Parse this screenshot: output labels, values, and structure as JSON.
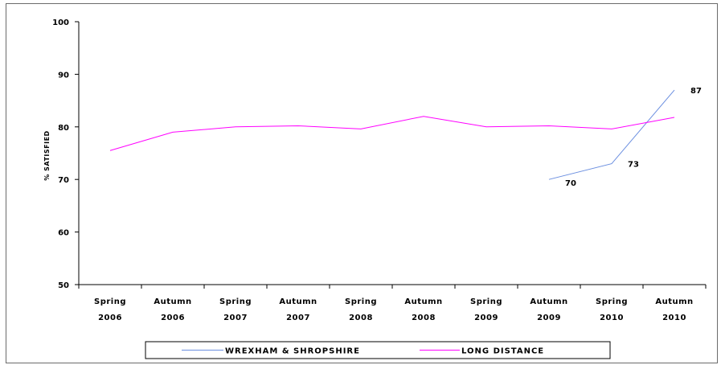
{
  "chart_data": {
    "type": "line",
    "title": "",
    "xlabel": "",
    "ylabel": "% SATISFIED",
    "ylim": [
      50,
      100
    ],
    "yticks": [
      50,
      60,
      70,
      80,
      90,
      100
    ],
    "grid": false,
    "legend_position": "bottom",
    "categories": [
      [
        "Spring",
        "2006"
      ],
      [
        "Autumn",
        "2006"
      ],
      [
        "Spring",
        "2007"
      ],
      [
        "Autumn",
        "2007"
      ],
      [
        "Spring",
        "2008"
      ],
      [
        "Autumn",
        "2008"
      ],
      [
        "Spring",
        "2009"
      ],
      [
        "Autumn",
        "2009"
      ],
      [
        "Spring",
        "2010"
      ],
      [
        "Autumn",
        "2010"
      ]
    ],
    "series": [
      {
        "name": "WREXHAM & SHROPSHIRE",
        "color": "#6b8fe0",
        "values": [
          null,
          null,
          null,
          null,
          null,
          null,
          null,
          70,
          73,
          87
        ],
        "labels": [
          null,
          null,
          null,
          null,
          null,
          null,
          null,
          "70",
          "73",
          "87"
        ]
      },
      {
        "name": "LONG DISTANCE",
        "color": "#ff00ff",
        "values": [
          75.5,
          79,
          80,
          80.2,
          79.6,
          82,
          80,
          80.2,
          79.6,
          81.8
        ],
        "labels": []
      }
    ]
  }
}
